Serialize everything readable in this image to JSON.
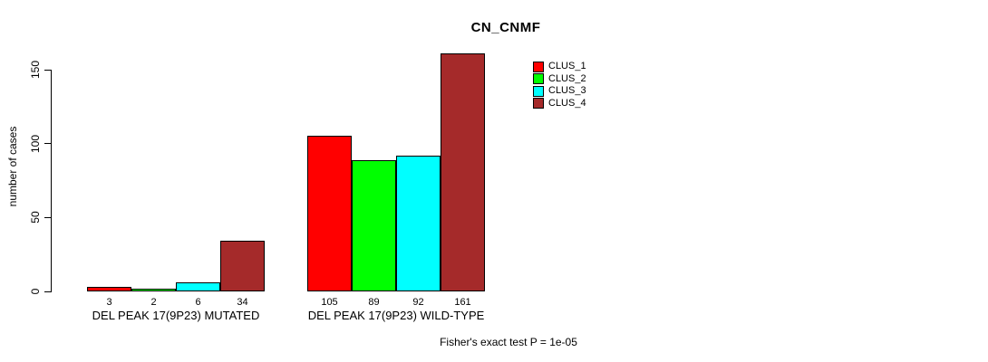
{
  "colors": {
    "background": "#ffffff",
    "axis": "#000000",
    "text": "#000000",
    "clus_1": "#ff0000",
    "clus_2": "#00ff00",
    "clus_3": "#00ffff",
    "clus_4": "#a52a2a"
  },
  "chart_data": {
    "type": "bar",
    "title": "CN_CNMF",
    "ylabel": "number of cases",
    "xlabel": "",
    "ylim": [
      0,
      150
    ],
    "yticks": [
      0,
      50,
      100,
      150
    ],
    "grid": false,
    "legend_position": "top-right",
    "categories": [
      "DEL PEAK 17(9P23) MUTATED",
      "DEL PEAK 17(9P23) WILD-TYPE"
    ],
    "series": [
      {
        "name": "CLUS_1",
        "color": "#ff0000",
        "values": [
          3,
          105
        ]
      },
      {
        "name": "CLUS_2",
        "color": "#00ff00",
        "values": [
          2,
          89
        ]
      },
      {
        "name": "CLUS_3",
        "color": "#00ffff",
        "values": [
          6,
          92
        ]
      },
      {
        "name": "CLUS_4",
        "color": "#a52a2a",
        "values": [
          34,
          161
        ]
      }
    ],
    "bar_value_labels": [
      [
        3,
        2,
        6,
        34
      ],
      [
        105,
        89,
        92,
        161
      ]
    ],
    "annotation": "Fisher's exact test P = 1e-05"
  }
}
